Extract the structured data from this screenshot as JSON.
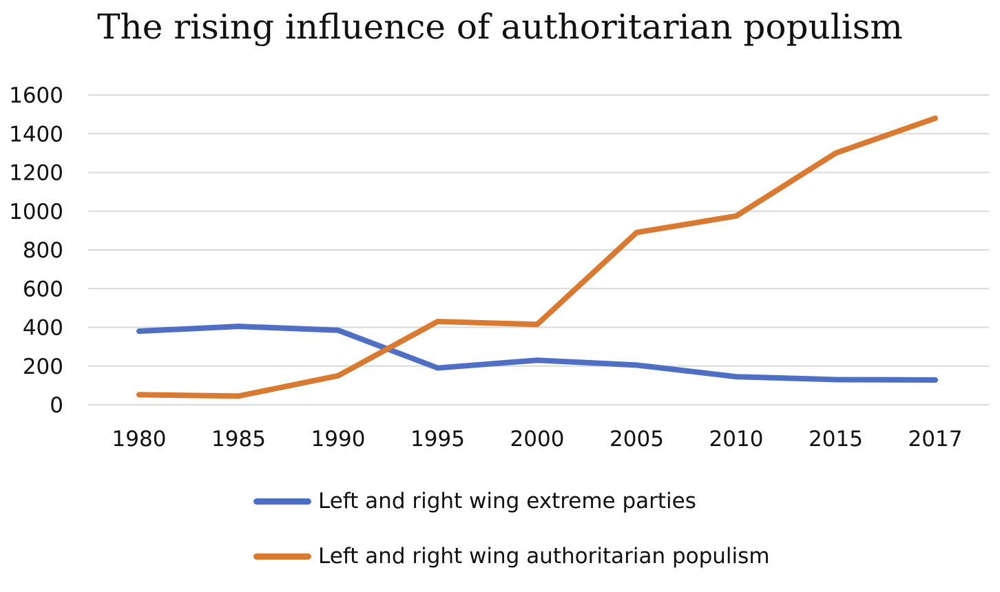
{
  "chart_data": {
    "type": "line",
    "title": "The rising influence of authoritarian populism",
    "xlabel": "",
    "ylabel": "",
    "categories": [
      "1980",
      "1985",
      "1990",
      "1995",
      "2000",
      "2005",
      "2010",
      "2015",
      "2017"
    ],
    "ylim": [
      0,
      1600
    ],
    "yticks": [
      0,
      200,
      400,
      600,
      800,
      1000,
      1200,
      1400,
      1600
    ],
    "grid": true,
    "legend_position": "bottom",
    "series": [
      {
        "name": "Left and right wing extreme parties",
        "color": "#4F6FC4",
        "values": [
          380,
          405,
          385,
          190,
          230,
          205,
          145,
          130,
          128
        ]
      },
      {
        "name": "Left and right wing authoritarian populism",
        "color": "#D97A33",
        "values": [
          52,
          45,
          150,
          430,
          415,
          890,
          975,
          1300,
          1480
        ]
      }
    ]
  }
}
